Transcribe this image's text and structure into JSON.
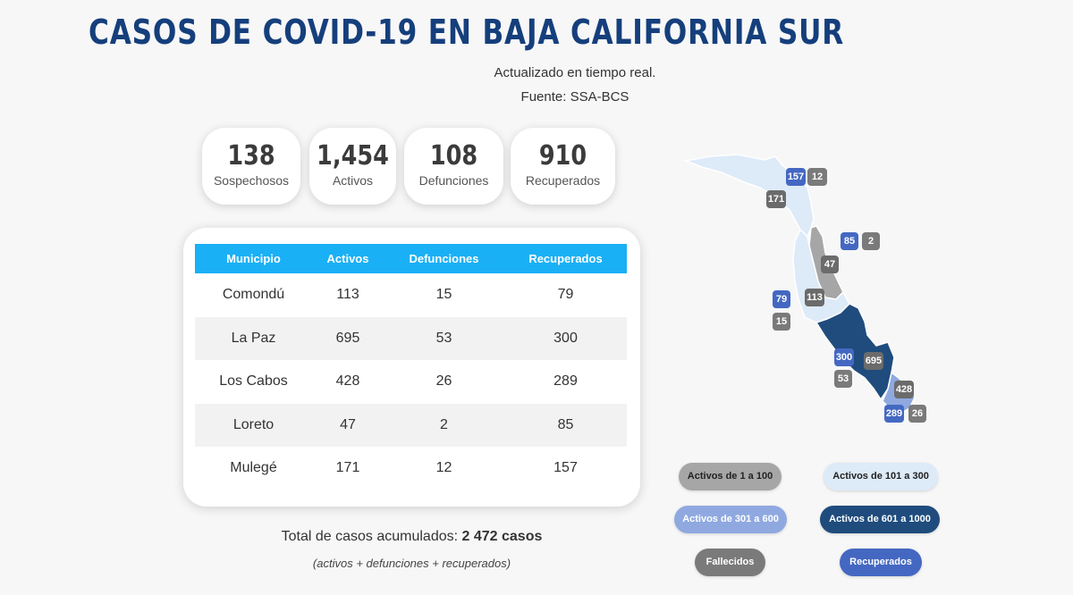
{
  "header": {
    "title": "CASOS DE COVID-19 EN BAJA CALIFORNIA SUR",
    "subtitle": "Actualizado en tiempo real.",
    "source": "Fuente: SSA-BCS"
  },
  "stats": [
    {
      "value": "138",
      "label": "Sospechosos"
    },
    {
      "value": "1,454",
      "label": "Activos"
    },
    {
      "value": "108",
      "label": "Defunciones"
    },
    {
      "value": "910",
      "label": "Recuperados"
    }
  ],
  "table": {
    "headers": [
      "Municipio",
      "Activos",
      "Defunciones",
      "Recuperados"
    ],
    "rows": [
      [
        "Comondú",
        "113",
        "15",
        "79"
      ],
      [
        "La Paz",
        "695",
        "53",
        "300"
      ],
      [
        "Los Cabos",
        "428",
        "26",
        "289"
      ],
      [
        "Loreto",
        "47",
        "2",
        "85"
      ],
      [
        "Mulegé",
        "171",
        "12",
        "157"
      ]
    ]
  },
  "totals": {
    "label": "Total de casos acumulados:",
    "value": "2 472 casos",
    "formula": "(activos + defunciones + recuperados)"
  },
  "map": {
    "badges": {
      "mulege_recuperados": "157",
      "mulege_fallecidos": "12",
      "mulege_activos": "171",
      "loreto_recuperados": "85",
      "loreto_fallecidos": "2",
      "loreto_activos": "47",
      "comondu_recuperados": "79",
      "comondu_activos": "113",
      "comondu_fallecidos": "15",
      "lapaz_recuperados": "300",
      "lapaz_activos": "695",
      "lapaz_fallecidos": "53",
      "loscabos_activos": "428",
      "loscabos_recuperados": "289",
      "loscabos_fallecidos": "26"
    }
  },
  "legend": {
    "range1": "Activos de 1 a 100",
    "range2": "Activos de 101 a 300",
    "range3": "Activos de 301 a 600",
    "range4": "Activos de 601 a 1000",
    "deaths": "Fallecidos",
    "recovered": "Recuperados"
  },
  "colors": {
    "title": "#153f7c",
    "table_header": "#1ab0f5",
    "range_1_100": "#a6a6a6",
    "range_101_300": "#ddeaf8",
    "range_301_600": "#8fa9e0",
    "range_601_1000": "#1f4c7d",
    "fallecidos": "#7a7a7a",
    "recuperados": "#4468c2"
  }
}
